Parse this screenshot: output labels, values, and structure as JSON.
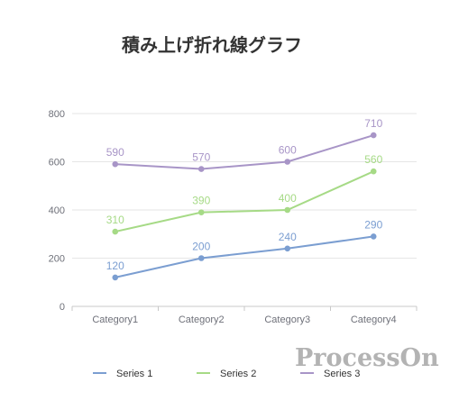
{
  "watermark": "ProcessOn",
  "chart_data": {
    "type": "line",
    "title": "積み上げ折れ線グラフ",
    "xlabel": "",
    "ylabel": "",
    "categories": [
      "Category1",
      "Category2",
      "Category3",
      "Category4"
    ],
    "ylim": [
      0,
      800
    ],
    "yticks": [
      0,
      200,
      400,
      600,
      800
    ],
    "grid": true,
    "legend": "bottom",
    "series": [
      {
        "name": "Series 1",
        "values": [
          120,
          200,
          240,
          290
        ],
        "color": "#7b9ed1"
      },
      {
        "name": "Series 2",
        "values": [
          310,
          390,
          400,
          560
        ],
        "color": "#a6da86"
      },
      {
        "name": "Series 3",
        "values": [
          590,
          570,
          600,
          710
        ],
        "color": "#a895c7"
      }
    ]
  }
}
